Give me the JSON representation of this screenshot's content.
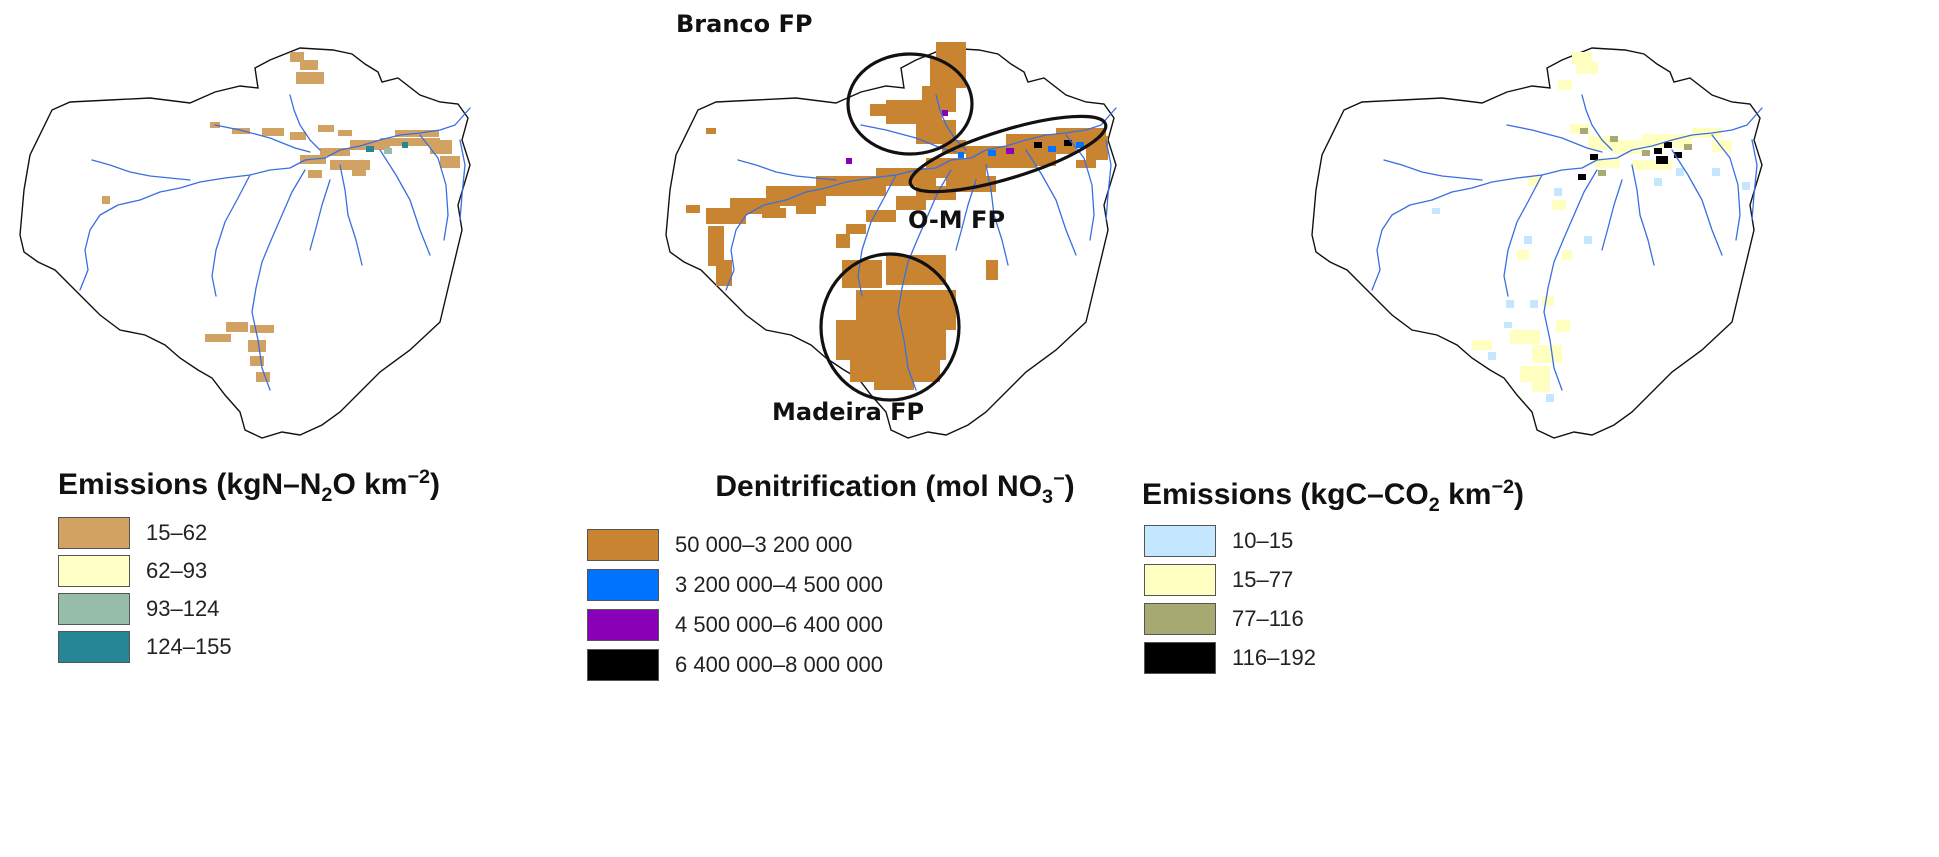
{
  "panels": [
    {
      "legend_title_parts": [
        "Emissions (kgN",
        "N",
        "2",
        "O km",
        "−2",
        ")"
      ],
      "legend_items": [
        {
          "label": "15–62",
          "color": "#D2A263"
        },
        {
          "label": "62–93",
          "color": "#FFFFC6"
        },
        {
          "label": "93–124",
          "color": "#96BDAA"
        },
        {
          "label": "124–155",
          "color": "#258796"
        }
      ]
    },
    {
      "map_labels": [
        "Branco FP",
        "O-M FP",
        "Madeira FP"
      ],
      "legend_title_parts": [
        "Denitrification (mol NO",
        "3",
        "−",
        ")"
      ],
      "legend_items": [
        {
          "label": "50 000–3 200 000",
          "color": "#C98431"
        },
        {
          "label": "3 200 000–4 500 000",
          "color": "#0073FF"
        },
        {
          "label": "4 500 000–6 400 000",
          "color": "#8A00B6"
        },
        {
          "label": "6 400 000–8 000 000",
          "color": "#000000"
        }
      ]
    },
    {
      "legend_title_parts": [
        "Emissions (kgC",
        "CO",
        "2",
        " km",
        "−2",
        ")"
      ],
      "legend_items": [
        {
          "label": "10–15",
          "color": "#C5E6FF"
        },
        {
          "label": "15–77",
          "color": "#FFFFC2"
        },
        {
          "label": "77–116",
          "color": "#A7AA72"
        },
        {
          "label": "116–192",
          "color": "#000000"
        }
      ]
    }
  ]
}
